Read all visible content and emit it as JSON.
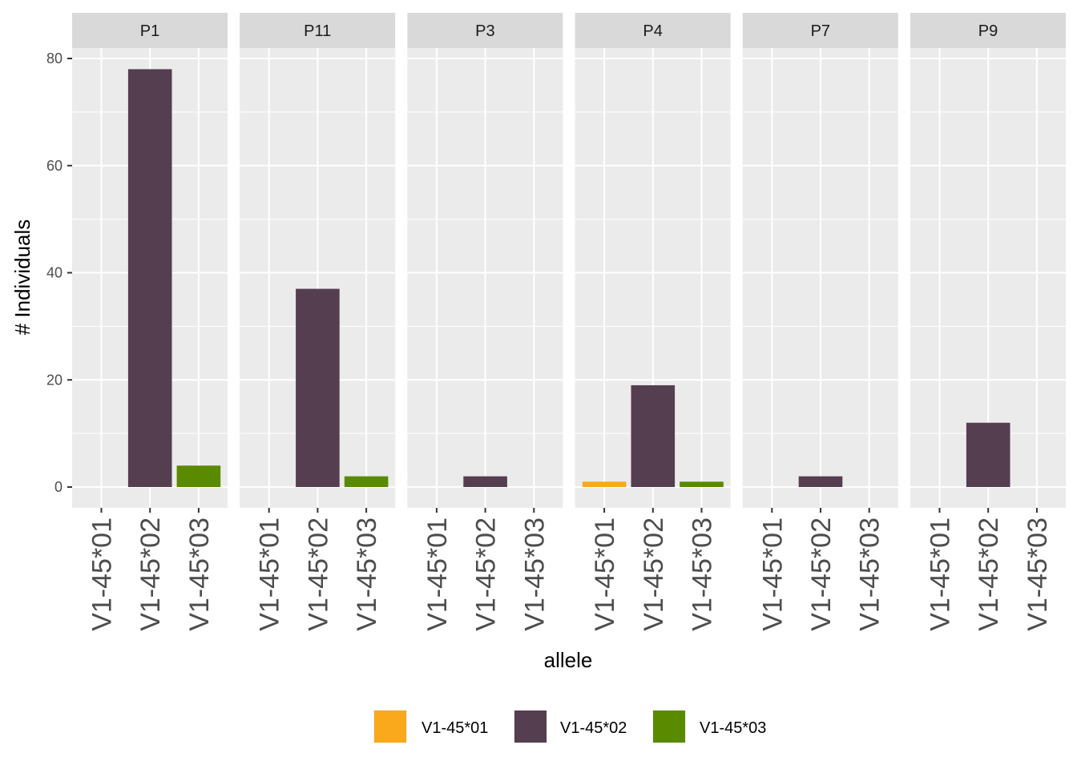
{
  "chart_data": {
    "type": "bar",
    "xlabel": "allele",
    "ylabel": "# Individuals",
    "ylim": [
      -4,
      88
    ],
    "yticks": [
      0,
      20,
      40,
      60,
      80
    ],
    "grid": true,
    "legend_position": "bottom",
    "categories": [
      "V1-45*01",
      "V1-45*02",
      "V1-45*03"
    ],
    "colors": {
      "V1-45*01": "#F9A91B",
      "V1-45*02": "#543E50",
      "V1-45*03": "#5A8A00"
    },
    "legend": [
      "V1-45*01",
      "V1-45*02",
      "V1-45*03"
    ],
    "facets": [
      {
        "name": "P1",
        "values": [
          0,
          78,
          4
        ]
      },
      {
        "name": "P11",
        "values": [
          0,
          37,
          2
        ]
      },
      {
        "name": "P3",
        "values": [
          0,
          2,
          0
        ]
      },
      {
        "name": "P4",
        "values": [
          1,
          19,
          1
        ]
      },
      {
        "name": "P7",
        "values": [
          0,
          2,
          0
        ]
      },
      {
        "name": "P9",
        "values": [
          0,
          12,
          0
        ]
      }
    ]
  }
}
